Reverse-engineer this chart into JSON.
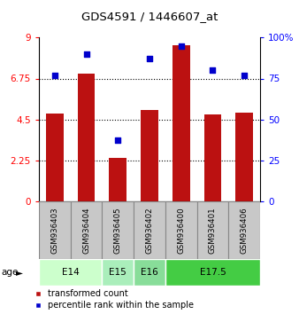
{
  "title": "GDS4591 / 1446607_at",
  "samples": [
    "GSM936403",
    "GSM936404",
    "GSM936405",
    "GSM936402",
    "GSM936400",
    "GSM936401",
    "GSM936406"
  ],
  "bar_values": [
    4.8,
    7.0,
    2.35,
    5.0,
    8.6,
    4.75,
    4.85
  ],
  "percentile_values": [
    77,
    90,
    37,
    87,
    95,
    80,
    77
  ],
  "bar_color": "#bb1111",
  "dot_color": "#0000cc",
  "ylim_left": [
    0,
    9
  ],
  "ylim_right": [
    0,
    100
  ],
  "yticks_left": [
    0,
    2.25,
    4.5,
    6.75,
    9
  ],
  "ytick_labels_left": [
    "0",
    "2.25",
    "4.5",
    "6.75",
    "9"
  ],
  "yticks_right": [
    0,
    25,
    50,
    75,
    100
  ],
  "ytick_labels_right": [
    "0",
    "25",
    "50",
    "75",
    "100%"
  ],
  "hgrid_vals": [
    2.25,
    4.5,
    6.75
  ],
  "age_groups": [
    {
      "label": "E14",
      "cols": [
        0,
        1
      ],
      "color": "#ccffcc"
    },
    {
      "label": "E15",
      "cols": [
        2
      ],
      "color": "#aaeebb"
    },
    {
      "label": "E16",
      "cols": [
        3
      ],
      "color": "#88dd99"
    },
    {
      "label": "E17.5",
      "cols": [
        4,
        5,
        6
      ],
      "color": "#44cc44"
    }
  ],
  "legend_red_label": "transformed count",
  "legend_blue_label": "percentile rank within the sample",
  "sample_box_color": "#c8c8c8",
  "sample_box_edge": "#888888"
}
